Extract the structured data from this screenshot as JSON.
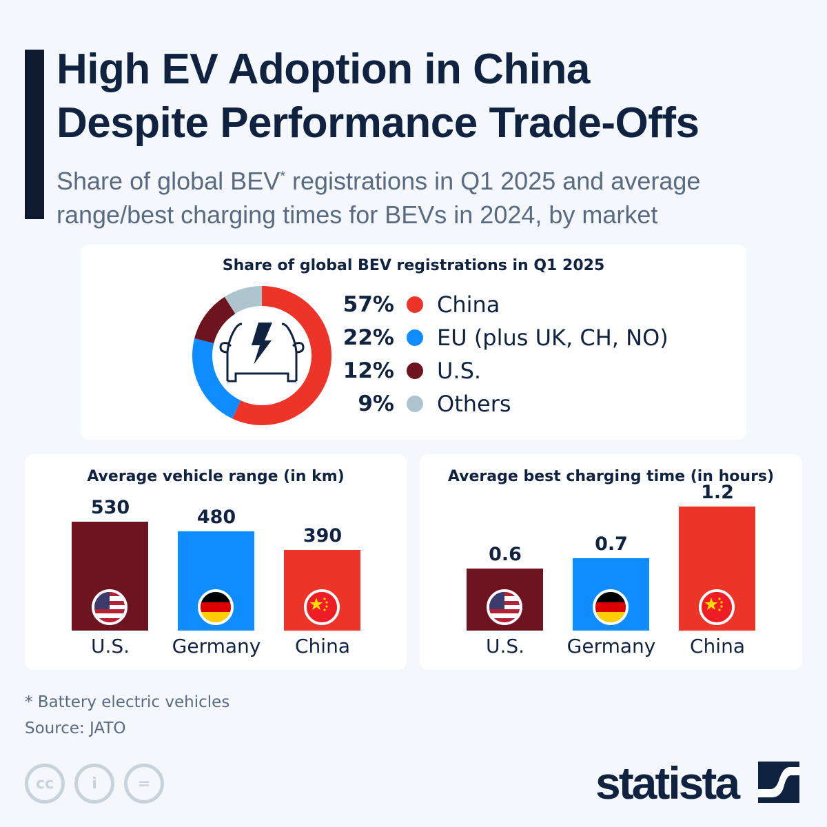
{
  "title_lines": [
    "High EV Adoption in China",
    "Despite Performance Trade-Offs"
  ],
  "subtitle": {
    "part1": "Share of global BEV",
    "sup": "*",
    "part2": " registrations in Q1 2025 and average",
    "line2": "range/best charging times for BEVs in 2024, by market"
  },
  "colors": {
    "us": "#6d1420",
    "germany": "#0f8cff",
    "china": "#ec3428",
    "others": "#aec5cf",
    "eu": "#0f8cff"
  },
  "chart_data": [
    {
      "type": "pie",
      "donut": true,
      "title": "Share of global BEV registrations in Q1 2025",
      "categories": [
        "China",
        "EU (plus UK, CH, NO)",
        "U.S.",
        "Others"
      ],
      "values": [
        57,
        22,
        12,
        9
      ],
      "labels": [
        "57%",
        "22%",
        "12%",
        "9%"
      ],
      "center_icon": "electric-car-icon"
    },
    {
      "type": "bar",
      "title": "Average vehicle range (in km)",
      "categories": [
        "U.S.",
        "Germany",
        "China"
      ],
      "values": [
        530,
        480,
        390
      ],
      "labels": [
        "530",
        "480",
        "390"
      ],
      "ylim": [
        0,
        600
      ]
    },
    {
      "type": "bar",
      "title": "Average best charging time (in hours)",
      "categories": [
        "U.S.",
        "Germany",
        "China"
      ],
      "values": [
        0.6,
        0.7,
        1.2
      ],
      "labels": [
        "0.6",
        "0.7",
        "1.2"
      ],
      "ylim": [
        0,
        1.3
      ]
    }
  ],
  "footnote": "* Battery electric vehicles",
  "source": "Source: JATO",
  "license_icons": [
    "cc-icon",
    "attribution-icon",
    "no-derivatives-icon"
  ],
  "logo": "statista"
}
